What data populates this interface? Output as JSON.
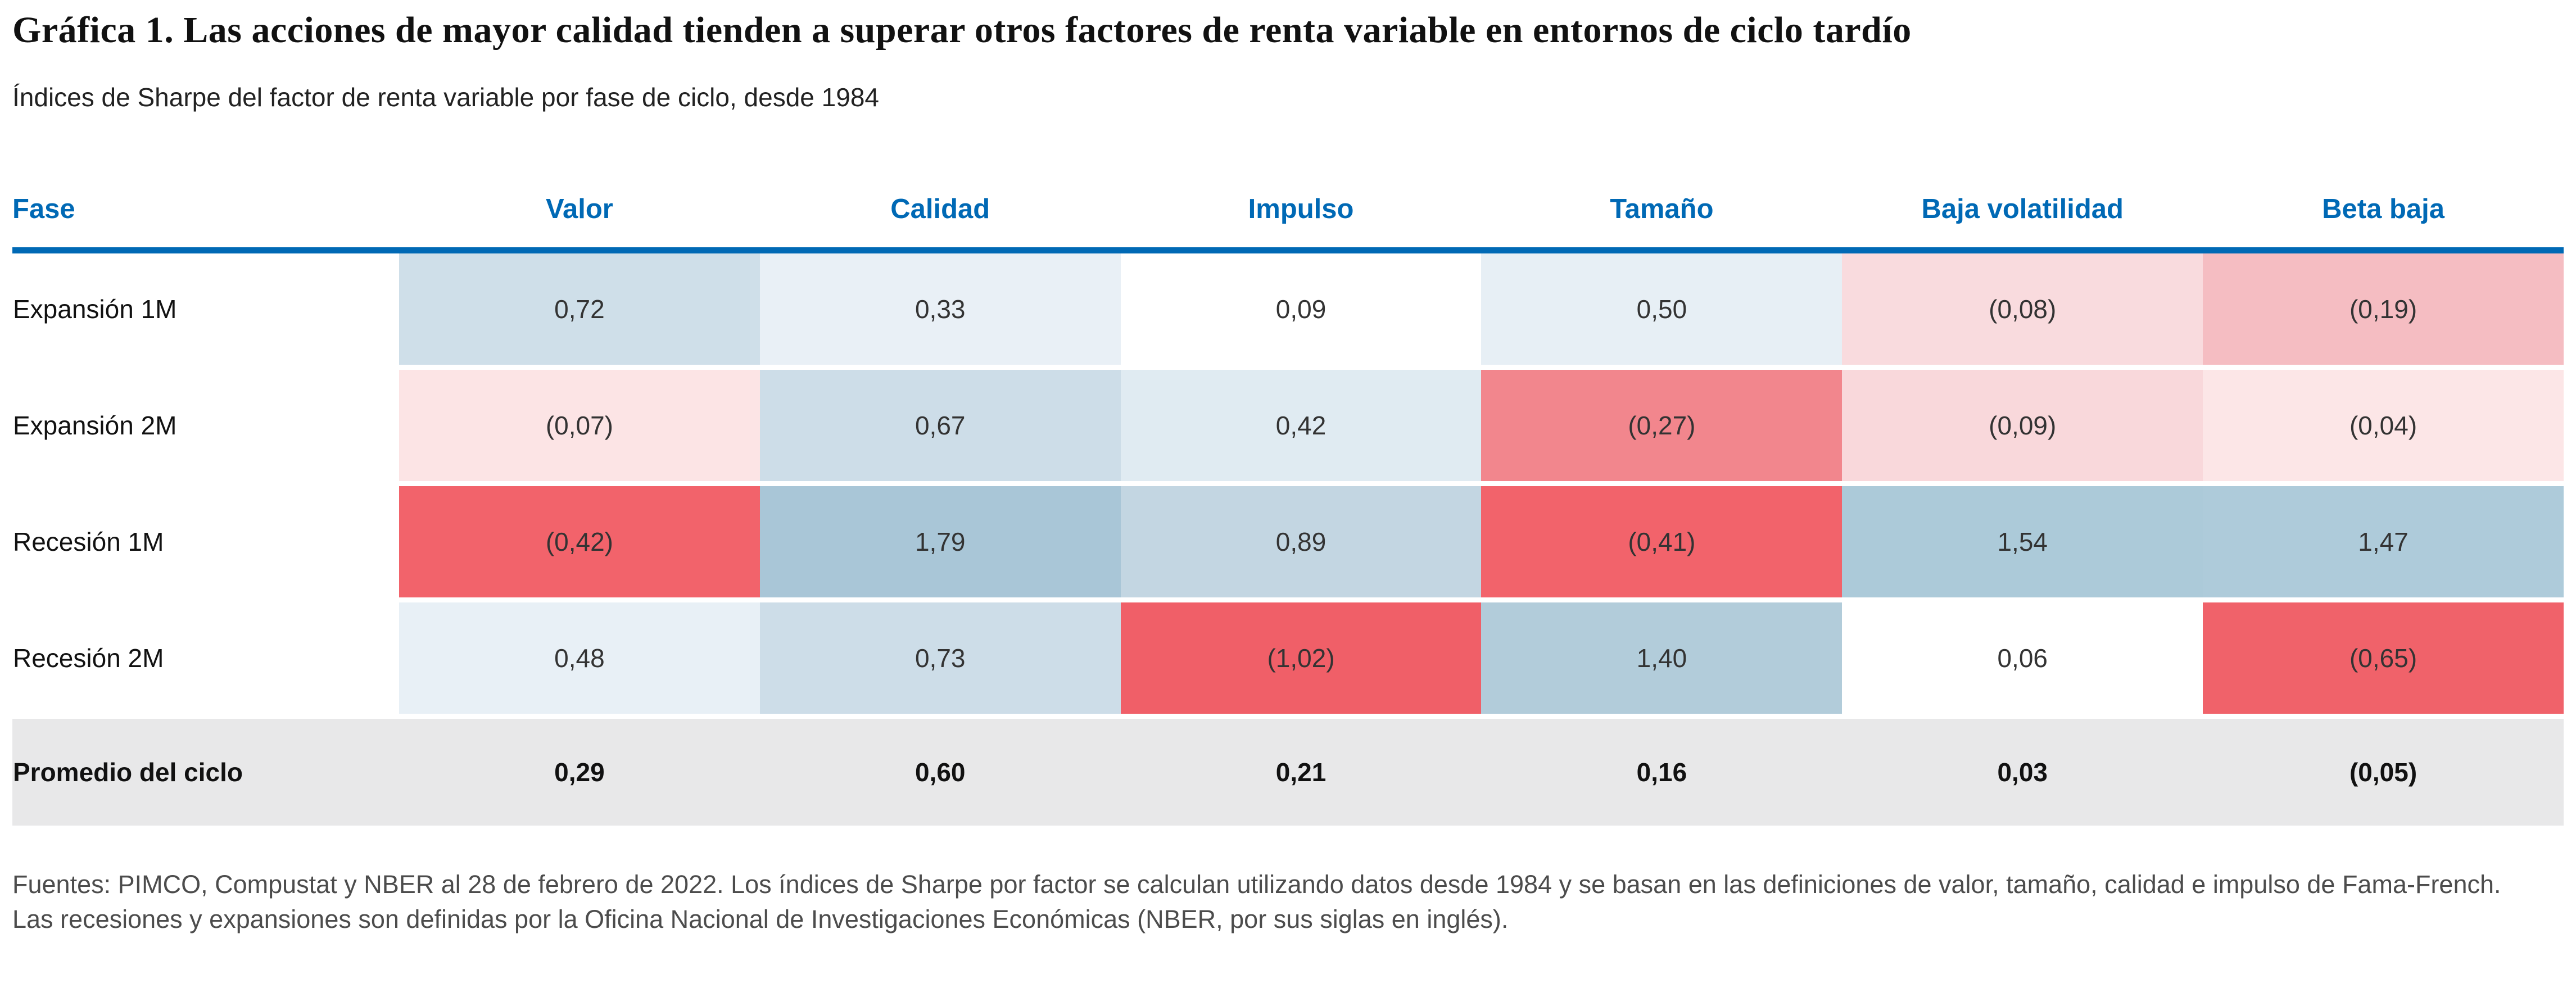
{
  "title": "Gráfica 1. Las acciones de mayor calidad tienden a superar otros factores de renta variable en entornos de ciclo tardío",
  "subtitle": "Índices de Sharpe del factor de renta variable por fase de ciclo, desde 1984",
  "source_note": "Fuentes: PIMCO, Compustat y NBER al 28 de febrero de 2022. Los índices de Sharpe por factor se calculan utilizando datos desde 1984 y se basan en las definiciones de valor, tamaño, calidad e impulso de Fama-French. Las recesiones y expansiones son definidas por la Oficina Nacional de Investigaciones Económicas (NBER, por sus siglas en inglés).",
  "colors": {
    "header_blue": "#0069b5",
    "avg_row_gray": "#e8e8e9",
    "strong_red": "#f2636b",
    "steel_blue": "#a9c6d7",
    "white": "#ffffff"
  },
  "chart_data": {
    "type": "heatmap",
    "title": "Gráfica 1. Las acciones de mayor calidad tienden a superar otros factores de renta variable en entornos de ciclo tardío",
    "subtitle": "Índices de Sharpe del factor de renta variable por fase de ciclo, desde 1984",
    "columns": [
      "Fase",
      "Valor",
      "Calidad",
      "Impulso",
      "Tamaño",
      "Baja volatilidad",
      "Beta baja"
    ],
    "rows": [
      {
        "phase": "Expansión 1M",
        "display": [
          "0,72",
          "0,33",
          "0,09",
          "0,50",
          "(0,08)",
          "(0,19)"
        ],
        "values": [
          0.72,
          0.33,
          0.09,
          0.5,
          -0.08,
          -0.19
        ],
        "colors": [
          "#cfdfe9",
          "#e9f0f6",
          "#ffffff",
          "#e7eff5",
          "#f9dbde",
          "#f5bdc2"
        ]
      },
      {
        "phase": "Expansión 2M",
        "display": [
          "(0,07)",
          "0,67",
          "0,42",
          "(0,27)",
          "(0,09)",
          "(0,04)"
        ],
        "values": [
          -0.07,
          0.67,
          0.42,
          -0.27,
          -0.09,
          -0.04
        ],
        "colors": [
          "#fce4e5",
          "#cddde8",
          "#e0ebf2",
          "#f2868d",
          "#f9d8db",
          "#fce6e7"
        ]
      },
      {
        "phase": "Recesión 1M",
        "display": [
          "(0,42)",
          "1,79",
          "0,89",
          "(0,41)",
          "1,54",
          "1,47"
        ],
        "values": [
          -0.42,
          1.79,
          0.89,
          -0.41,
          1.54,
          1.47
        ],
        "colors": [
          "#f2636b",
          "#a9c6d7",
          "#c3d6e2",
          "#f2636b",
          "#accad9",
          "#aecbda"
        ]
      },
      {
        "phase": "Recesión 2M",
        "display": [
          "0,48",
          "0,73",
          "(1,02)",
          "1,40",
          "0,06",
          "(0,65)"
        ],
        "values": [
          0.48,
          0.73,
          -1.02,
          1.4,
          0.06,
          -0.65
        ],
        "colors": [
          "#e8f0f6",
          "#cddde8",
          "#f05f68",
          "#b2ccda",
          "#ffffff",
          "#f0626a"
        ]
      },
      {
        "phase": "Promedio del ciclo",
        "display": [
          "0,29",
          "0,60",
          "0,21",
          "0,16",
          "0,03",
          "(0,05)"
        ],
        "values": [
          0.29,
          0.6,
          0.21,
          0.16,
          0.03,
          -0.05
        ],
        "is_average": true
      }
    ],
    "legend_position": "none",
    "grid": false,
    "negative_format": "parentheses, comma decimal separator"
  }
}
